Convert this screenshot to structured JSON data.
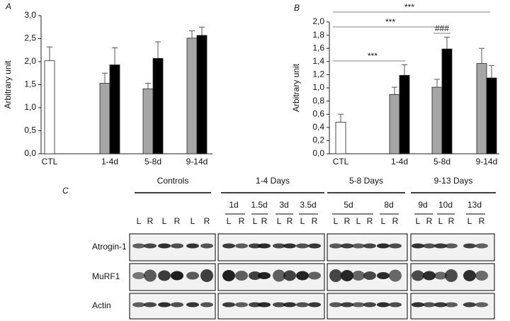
{
  "chart_data": [
    {
      "type": "bar",
      "panel_label": "A",
      "ylabel": "Arbitrary unit",
      "categories": [
        "CTL",
        "1-4d",
        "5-8d",
        "9-14d"
      ],
      "series": [
        {
          "color": "#ffffff",
          "values": [
            2.02,
            null,
            null,
            null
          ],
          "errors": [
            0.3,
            null,
            null,
            null
          ]
        },
        {
          "color": "#a6a6a6",
          "values": [
            null,
            1.53,
            1.41,
            2.51
          ],
          "errors": [
            null,
            0.22,
            0.12,
            0.16
          ]
        },
        {
          "color": "#000000",
          "values": [
            null,
            1.93,
            2.07,
            2.57
          ],
          "errors": [
            null,
            0.37,
            0.36,
            0.18
          ]
        }
      ],
      "ylim": [
        0,
        3
      ],
      "yticks": [
        {
          "value": 0,
          "label": "0,0"
        },
        {
          "value": 0.5,
          "label": "0,5"
        },
        {
          "value": 1,
          "label": "1,0"
        },
        {
          "value": 1.5,
          "label": "1,5"
        },
        {
          "value": 2,
          "label": "2,0"
        },
        {
          "value": 2.5,
          "label": "2,5"
        },
        {
          "value": 3,
          "label": "3,0"
        }
      ]
    },
    {
      "type": "bar",
      "panel_label": "B",
      "ylabel": "Arbitrary unit",
      "categories": [
        "CTL",
        "1-4d",
        "5-8d",
        "9-14d"
      ],
      "series": [
        {
          "color": "#ffffff",
          "values": [
            0.48,
            null,
            null,
            null
          ],
          "errors": [
            0.12,
            null,
            null,
            null
          ]
        },
        {
          "color": "#a6a6a6",
          "values": [
            null,
            0.9,
            1.01,
            1.37
          ],
          "errors": [
            null,
            0.11,
            0.12,
            0.23
          ]
        },
        {
          "color": "#000000",
          "values": [
            null,
            1.19,
            1.59,
            1.15
          ],
          "errors": [
            null,
            0.16,
            0.18,
            0.19
          ]
        }
      ],
      "ylim": [
        0,
        2
      ],
      "yticks": [
        {
          "value": 0,
          "label": "0,0"
        },
        {
          "value": 0.2,
          "label": "0,2"
        },
        {
          "value": 0.4,
          "label": "0,4"
        },
        {
          "value": 0.6,
          "label": "0,6"
        },
        {
          "value": 0.8,
          "label": "0,8"
        },
        {
          "value": 1,
          "label": "1,0"
        },
        {
          "value": 1.2,
          "label": "1,2"
        },
        {
          "value": 1.4,
          "label": "1,4"
        },
        {
          "value": 1.6,
          "label": "1,6"
        },
        {
          "value": 1.8,
          "label": "1,8"
        },
        {
          "value": 2,
          "label": "2,0"
        }
      ],
      "annotations": [
        "***",
        "***",
        "###",
        "***"
      ]
    }
  ],
  "blot": {
    "panel_label": "C",
    "groups": [
      {
        "label": "Controls",
        "days": [
          {
            "label": null,
            "lanes": [
              "L",
              "R",
              "L",
              "R",
              "L",
              "R"
            ]
          }
        ]
      },
      {
        "label": "1-4 Days",
        "days": [
          {
            "label": "1d",
            "lanes": [
              "L",
              "R"
            ]
          },
          {
            "label": "1.5d",
            "lanes": [
              "L",
              "R"
            ]
          },
          {
            "label": "3d",
            "lanes": [
              "L",
              "R"
            ]
          },
          {
            "label": "3.5d",
            "lanes": [
              "L",
              "R"
            ]
          }
        ]
      },
      {
        "label": "5-8 Days",
        "days": [
          {
            "label": "5d",
            "lanes": [
              "L",
              "R",
              "L",
              "R"
            ]
          },
          {
            "label": "8d",
            "lanes": [
              "L",
              "R"
            ]
          }
        ]
      },
      {
        "label": "9-13 Days",
        "days": [
          {
            "label": "9d",
            "lanes": [
              "L",
              "R"
            ]
          },
          {
            "label": "10d",
            "lanes": [
              "L",
              "R"
            ]
          },
          {
            "label": "13d",
            "lanes": [
              "L",
              "R"
            ]
          }
        ]
      }
    ],
    "rows": [
      "Atrogin-1",
      "MuRF1",
      "Actin"
    ]
  }
}
